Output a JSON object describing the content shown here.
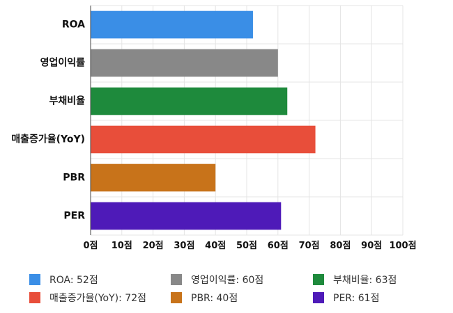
{
  "chart_data": {
    "type": "bar",
    "orientation": "horizontal",
    "categories": [
      "ROA",
      "영업이익률",
      "부채비율",
      "매출증가율(YoY)",
      "PBR",
      "PER"
    ],
    "values": [
      52,
      60,
      63,
      72,
      40,
      61
    ],
    "colors": [
      "#3a8ee6",
      "#888888",
      "#1e8a3c",
      "#e84e3a",
      "#c8731a",
      "#4e1ab8"
    ],
    "xlim": [
      0,
      100
    ],
    "x_ticks": [
      0,
      10,
      20,
      30,
      40,
      50,
      60,
      70,
      80,
      90,
      100
    ],
    "x_tick_suffix": "점",
    "grid": true,
    "legend_position": "bottom"
  },
  "legend": [
    {
      "label": "ROA: 52점",
      "color": "#3a8ee6"
    },
    {
      "label": "영업이익률: 60점",
      "color": "#888888"
    },
    {
      "label": "부채비율: 63점",
      "color": "#1e8a3c"
    },
    {
      "label": "매출증가율(YoY): 72점",
      "color": "#e84e3a"
    },
    {
      "label": "PBR: 40점",
      "color": "#c8731a"
    },
    {
      "label": "PER: 61점",
      "color": "#4e1ab8"
    }
  ]
}
